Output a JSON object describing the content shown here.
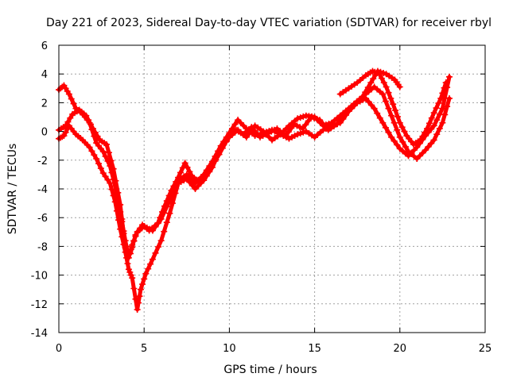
{
  "chart_data": {
    "type": "scatter",
    "title": "Day 221 of 2023, Sidereal Day-to-day VTEC variation (SDTVAR) for receiver rbyl",
    "xlabel": "GPS time / hours",
    "ylabel": "SDTVAR / TECUs",
    "xlim": [
      0,
      25
    ],
    "ylim": [
      -14,
      6
    ],
    "xticks": [
      0,
      5,
      10,
      15,
      20,
      25
    ],
    "yticks": [
      -14,
      -12,
      -10,
      -8,
      -6,
      -4,
      -2,
      0,
      2,
      4,
      6
    ],
    "grid": true,
    "marker": "+",
    "color": "#ff0000",
    "series": [
      {
        "name": "trace-1",
        "x": [
          0.0,
          0.3,
          0.6,
          1.0,
          1.4,
          1.8,
          2.2,
          2.6,
          3.0,
          3.3,
          3.6,
          3.9,
          4.1,
          4.3,
          4.6,
          5.0,
          5.5,
          6.0,
          6.5,
          7.0,
          7.5,
          8.0,
          8.5,
          9.0,
          9.5,
          10.0,
          10.5,
          11.0,
          11.5,
          12.0,
          12.5,
          13.0,
          13.5,
          14.0,
          14.5,
          15.0,
          15.5,
          16.0,
          16.5,
          17.0,
          17.5,
          18.0,
          18.5,
          19.0,
          19.5,
          20.0,
          20.5,
          21.0,
          21.5,
          22.0,
          22.5,
          22.9
        ],
        "y": [
          2.9,
          3.2,
          2.6,
          1.6,
          1.2,
          0.6,
          -0.8,
          -1.4,
          -2.4,
          -3.8,
          -5.6,
          -7.6,
          -8.8,
          -7.9,
          -7.0,
          -6.6,
          -6.9,
          -6.1,
          -4.8,
          -3.4,
          -3.0,
          -3.6,
          -3.0,
          -2.1,
          -1.0,
          -0.1,
          0.8,
          0.2,
          -0.3,
          -0.1,
          0.1,
          -0.2,
          0.4,
          0.9,
          1.1,
          1.0,
          0.4,
          0.6,
          1.1,
          1.6,
          2.1,
          2.6,
          3.1,
          2.6,
          1.1,
          -0.4,
          -1.4,
          -1.9,
          -1.3,
          -0.6,
          0.6,
          2.3
        ]
      },
      {
        "name": "trace-2",
        "x": [
          0.0,
          0.3,
          0.6,
          1.0,
          1.4,
          1.8,
          2.2,
          2.6,
          3.0,
          3.3,
          3.6,
          3.9,
          4.1,
          4.3,
          4.6,
          4.8,
          5.1,
          5.5,
          6.0,
          6.5,
          7.0,
          7.5,
          8.0,
          8.5,
          9.0,
          9.5,
          10.0,
          10.5,
          11.0,
          11.5,
          12.0,
          12.5,
          13.0,
          13.5,
          14.0,
          14.5,
          15.0,
          15.5,
          16.0,
          16.5,
          17.0,
          17.5,
          18.0,
          18.5,
          19.0,
          19.5,
          20.0,
          20.5,
          21.0,
          21.5,
          22.0,
          22.5,
          22.9
        ],
        "y": [
          -0.5,
          -0.3,
          0.4,
          -0.2,
          -0.6,
          -1.1,
          -1.9,
          -2.9,
          -3.6,
          -4.9,
          -6.8,
          -8.4,
          -9.6,
          -10.2,
          -12.4,
          -11.0,
          -9.9,
          -8.9,
          -7.6,
          -5.7,
          -3.6,
          -3.3,
          -4.0,
          -3.4,
          -2.5,
          -1.2,
          -0.4,
          0.1,
          -0.4,
          0.4,
          0.0,
          -0.6,
          -0.2,
          -0.5,
          -0.2,
          0.0,
          -0.4,
          0.1,
          0.4,
          0.6,
          1.4,
          2.0,
          2.3,
          1.6,
          0.6,
          -0.4,
          -1.2,
          -1.7,
          -1.1,
          -0.3,
          0.4,
          1.6,
          3.8
        ]
      },
      {
        "name": "trace-3",
        "x": [
          0.0,
          0.4,
          0.8,
          1.2,
          1.6,
          2.0,
          2.4,
          2.8,
          3.2,
          3.6,
          3.9,
          4.2,
          4.5,
          4.9,
          5.3,
          5.8,
          6.2,
          6.6,
          7.0,
          7.4,
          7.8,
          8.2,
          8.8,
          9.4,
          10.0,
          10.4,
          10.8,
          11.3,
          11.8,
          12.3,
          12.8,
          13.3,
          13.8,
          14.3,
          14.8,
          15.3,
          15.8,
          16.3,
          16.8,
          17.3,
          17.8,
          18.3,
          18.7,
          19.2,
          19.7,
          20.0
        ],
        "y": [
          0.1,
          0.4,
          1.2,
          1.5,
          1.1,
          0.2,
          -0.6,
          -0.9,
          -2.6,
          -5.1,
          -8.1,
          -8.5,
          -7.2,
          -6.5,
          -6.9,
          -6.4,
          -5.2,
          -4.1,
          -3.2,
          -2.2,
          -3.1,
          -3.5,
          -2.7,
          -1.6,
          -0.3,
          0.1,
          -0.2,
          0.3,
          -0.4,
          -0.1,
          0.2,
          -0.3,
          0.5,
          0.2,
          1.0,
          0.8,
          0.1,
          0.5,
          1.3,
          1.9,
          2.4,
          3.4,
          4.2,
          4.0,
          3.6,
          3.1
        ]
      },
      {
        "name": "trace-4",
        "x": [
          16.5,
          17.0,
          17.5,
          18.0,
          18.4,
          18.8,
          19.2,
          19.6,
          20.0,
          20.4,
          20.8,
          21.2,
          21.6,
          22.0,
          22.4,
          22.7
        ],
        "y": [
          2.6,
          3.0,
          3.4,
          3.9,
          4.2,
          4.0,
          3.1,
          1.9,
          0.6,
          -0.3,
          -0.9,
          -0.6,
          0.2,
          1.3,
          2.3,
          3.4
        ]
      }
    ]
  }
}
